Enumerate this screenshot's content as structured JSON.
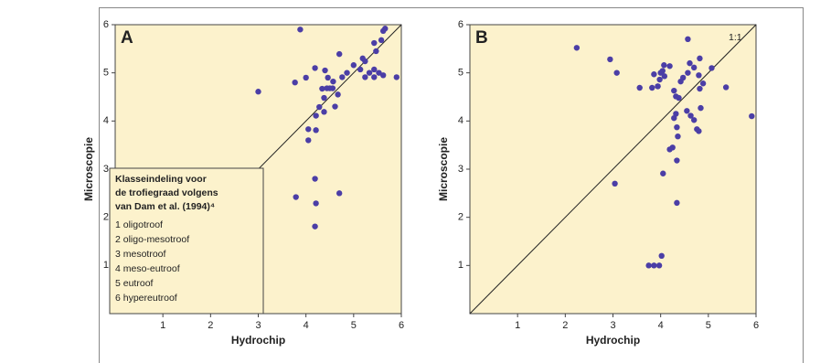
{
  "chart_data": [
    {
      "type": "scatter",
      "panel_label": "A",
      "x_label": "Hydrochip",
      "y_label": "Microscopie",
      "color": "#4b3ea6",
      "background": "#fcf2cc",
      "diagonal": true,
      "xlim": [
        0,
        6
      ],
      "ylim": [
        0,
        6
      ],
      "xticks": [
        1,
        2,
        3,
        4,
        5,
        6
      ],
      "yticks": [
        1,
        2,
        3,
        4,
        5,
        6
      ],
      "x": [
        3.88,
        3.0,
        3.77,
        4.0,
        4.19,
        4.4,
        4.46,
        4.34,
        4.44,
        4.5,
        4.56,
        4.57,
        4.38,
        4.28,
        4.38,
        4.21,
        4.61,
        4.7,
        4.76,
        4.67,
        4.86,
        5.0,
        5.14,
        5.24,
        5.19,
        5.33,
        5.24,
        5.43,
        5.43,
        5.47,
        5.53,
        5.43,
        5.62,
        5.58,
        5.62,
        5.66,
        5.9,
        4.05,
        4.21,
        4.05,
        4.19,
        3.79,
        4.21,
        4.7,
        4.19
      ],
      "values": [
        5.9,
        4.61,
        4.8,
        4.9,
        5.1,
        5.05,
        4.9,
        4.67,
        4.68,
        4.68,
        4.68,
        4.82,
        4.48,
        4.29,
        4.19,
        4.11,
        4.3,
        5.39,
        4.91,
        4.55,
        5.0,
        5.16,
        5.07,
        4.91,
        5.3,
        5.0,
        5.24,
        5.07,
        5.62,
        5.45,
        5.0,
        4.91,
        4.95,
        5.68,
        5.87,
        5.92,
        4.91,
        3.83,
        3.81,
        3.6,
        2.8,
        2.42,
        2.29,
        2.5,
        1.81
      ],
      "legend_lines": [
        "Klasseindeling voor",
        "de trofiegraad volgens",
        "van Dam et al. (1994)⁴"
      ],
      "classes": [
        "1 oligotroof",
        "2 oligo-mesotroof",
        "3 mesotroof",
        "4 meso-eutroof",
        "5 eutroof",
        "6 hypereutroof"
      ]
    },
    {
      "type": "scatter",
      "panel_label": "B",
      "x_label": "Hydrochip",
      "y_label": "Microscopie",
      "color": "#4b3ea6",
      "background": "#fcf2cc",
      "diagonal": true,
      "annotation": "1:1",
      "xlim": [
        0,
        6
      ],
      "ylim": [
        0,
        6
      ],
      "xticks": [
        1,
        2,
        3,
        4,
        5,
        6
      ],
      "yticks": [
        1,
        2,
        3,
        4,
        5,
        6
      ],
      "x": [
        2.24,
        2.94,
        3.08,
        3.04,
        3.56,
        3.82,
        3.86,
        3.94,
        4.0,
        4.04,
        4.08,
        3.98,
        3.94,
        4.07,
        4.19,
        4.28,
        4.32,
        4.38,
        4.32,
        4.28,
        4.34,
        4.36,
        4.25,
        4.19,
        4.05,
        4.34,
        4.34,
        4.57,
        4.61,
        4.57,
        4.7,
        4.82,
        4.8,
        4.89,
        4.82,
        4.55,
        4.63,
        4.7,
        4.76,
        4.8,
        5.07,
        4.84,
        5.37,
        5.91,
        4.02,
        3.86,
        3.97,
        3.75,
        4.47,
        4.42
      ],
      "values": [
        5.52,
        5.28,
        5.0,
        2.7,
        4.69,
        4.69,
        4.97,
        4.72,
        5.0,
        5.04,
        4.93,
        4.86,
        4.72,
        5.16,
        5.14,
        4.63,
        4.51,
        4.48,
        4.15,
        4.06,
        3.87,
        3.68,
        3.45,
        3.41,
        2.91,
        3.18,
        2.3,
        5.7,
        5.2,
        5.0,
        5.11,
        5.3,
        4.95,
        4.78,
        4.67,
        4.21,
        4.11,
        4.02,
        3.83,
        3.79,
        5.1,
        4.27,
        4.7,
        4.1,
        1.2,
        1.0,
        1.0,
        1.0,
        4.9,
        4.82
      ]
    }
  ]
}
